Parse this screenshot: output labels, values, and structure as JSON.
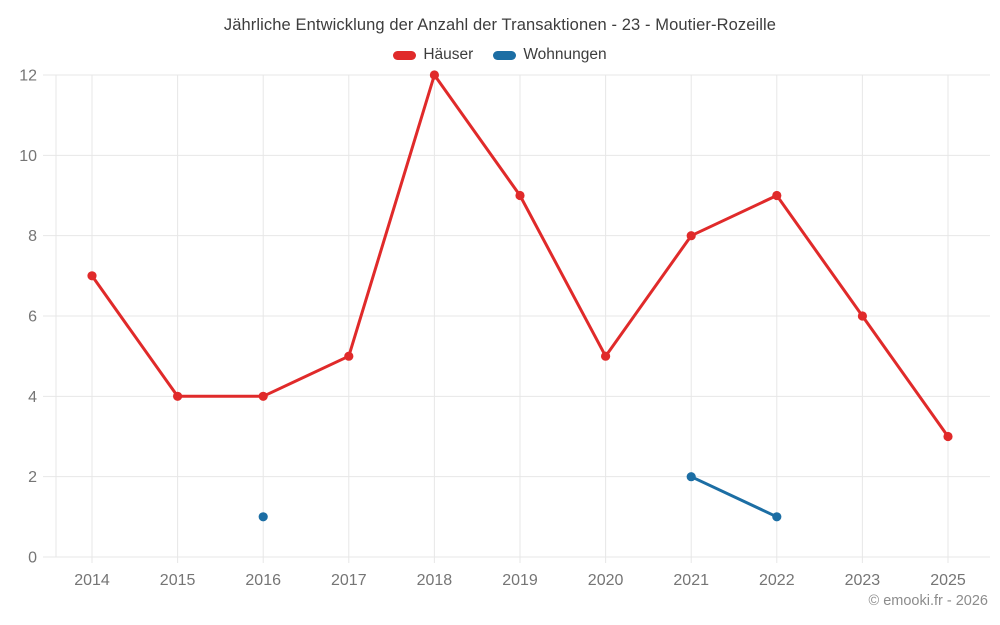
{
  "header": {
    "title": "Jährliche Entwicklung der Anzahl der Transaktionen - 23 - Moutier-Rozeille"
  },
  "legend": {
    "items": [
      {
        "label": "Häuser",
        "color": "#e02a2a"
      },
      {
        "label": "Wohnungen",
        "color": "#1c6ea4"
      }
    ]
  },
  "footer": {
    "credit": "© emooki.fr - 2026"
  },
  "colors": {
    "hauser_red": "#e02a2a",
    "wohnungen_blue": "#1c6ea4",
    "grid": "#e7e7e7",
    "tick_text": "#757575",
    "title_text": "#3d3d3d",
    "footer_text": "#8c8c8c",
    "background": "#ffffff"
  },
  "chart_data": {
    "type": "line",
    "title": "Jährliche Entwicklung der Anzahl der Transaktionen - 23 - Moutier-Rozeille",
    "categories": [
      "2014",
      "2015",
      "2016",
      "2017",
      "2018",
      "2019",
      "2020",
      "2021",
      "2022",
      "2023",
      "2025"
    ],
    "series": [
      {
        "name": "Häuser",
        "color": "#e02a2a",
        "values": [
          7,
          4,
          4,
          5,
          12,
          9,
          5,
          8,
          9,
          6,
          3
        ]
      },
      {
        "name": "Wohnungen",
        "color": "#1c6ea4",
        "values": [
          null,
          null,
          1,
          null,
          null,
          null,
          null,
          2,
          1,
          null,
          null
        ]
      }
    ],
    "xlabel": "",
    "ylabel": "",
    "ylim": [
      0,
      12
    ],
    "ytick_step": 2,
    "yticks": [
      0,
      2,
      4,
      6,
      8,
      10,
      12
    ],
    "grid": true,
    "legend_position": "top",
    "point_style": "circle",
    "notes": "Wohnungen has an isolated point in 2016 and a connected segment 2021-2022; year 2024 is absent from the axis"
  }
}
